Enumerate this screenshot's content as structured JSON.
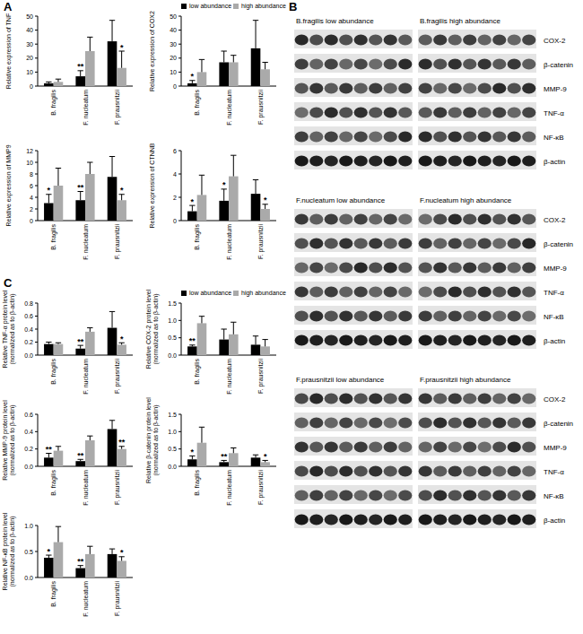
{
  "panel_labels": [
    "A",
    "B",
    "C"
  ],
  "chart_data": [
    {
      "type": "bar",
      "y_label": [
        "Relative expression of TNF"
      ],
      "categories": [
        "B. fragilis",
        "F. nucleatum",
        "F. prausnitzii"
      ],
      "series": [
        {
          "name": "low abundance",
          "color": "#000000",
          "values": [
            2,
            7,
            32
          ],
          "errors": [
            1,
            4,
            15
          ]
        },
        {
          "name": "high abundance",
          "color": "#aaaaaa",
          "values": [
            3,
            25,
            13
          ],
          "errors": [
            2,
            10,
            12
          ]
        }
      ],
      "ylim": [
        0,
        50
      ],
      "yticks": [
        0,
        10,
        20,
        30,
        40,
        50
      ],
      "annotations": [
        {
          "text": "**",
          "category": "F. nucleatum",
          "series": "low abundance"
        },
        {
          "text": "*",
          "category": "F. prausnitzii",
          "series": "high abundance"
        }
      ]
    },
    {
      "type": "bar",
      "y_label": [
        "Relative expression of COX2"
      ],
      "categories": [
        "B. fragilis",
        "F. nucleatum",
        "F. prausnitzii"
      ],
      "series": [
        {
          "name": "low abundance",
          "color": "#000000",
          "values": [
            2,
            17,
            27
          ],
          "errors": [
            2,
            8,
            20
          ]
        },
        {
          "name": "high abundance",
          "color": "#aaaaaa",
          "values": [
            10,
            17,
            12
          ],
          "errors": [
            9,
            5,
            5
          ]
        }
      ],
      "ylim": [
        0,
        50
      ],
      "yticks": [
        0,
        10,
        20,
        30,
        40,
        50
      ],
      "legend": "top",
      "annotations": [
        {
          "text": "*",
          "category": "B. fragilis",
          "series": "low abundance"
        }
      ]
    },
    {
      "type": "bar",
      "y_label": [
        "Relative expression of MMP9"
      ],
      "categories": [
        "B. fragilis",
        "F. nucleatum",
        "F. prausnitzii"
      ],
      "series": [
        {
          "name": "low abundance",
          "color": "#000000",
          "values": [
            3,
            3.5,
            7.5
          ],
          "errors": [
            1.5,
            1.5,
            3.5
          ]
        },
        {
          "name": "high abundance",
          "color": "#aaaaaa",
          "values": [
            6,
            8,
            3.5
          ],
          "errors": [
            3,
            2,
            1
          ]
        }
      ],
      "ylim": [
        0,
        12
      ],
      "yticks": [
        0,
        2,
        4,
        6,
        8,
        10,
        12
      ],
      "annotations": [
        {
          "text": "*",
          "category": "B. fragilis",
          "series": "low abundance"
        },
        {
          "text": "**",
          "category": "F. nucleatum",
          "series": "low abundance"
        },
        {
          "text": "*",
          "category": "F. prausnitzii",
          "series": "high abundance"
        }
      ]
    },
    {
      "type": "bar",
      "y_label": [
        "Relative expression of CTNNB"
      ],
      "categories": [
        "B. fragilis",
        "F. nucleatum",
        "F. prausnitzii"
      ],
      "series": [
        {
          "name": "low abundance",
          "color": "#000000",
          "values": [
            0.8,
            1.7,
            2.3
          ],
          "errors": [
            0.5,
            1,
            1.2
          ]
        },
        {
          "name": "high abundance",
          "color": "#aaaaaa",
          "values": [
            2.2,
            3.8,
            1
          ],
          "errors": [
            1.7,
            1.8,
            0.4
          ]
        }
      ],
      "ylim": [
        0,
        6
      ],
      "yticks": [
        0,
        2,
        4,
        6
      ],
      "annotations": [
        {
          "text": "*",
          "category": "B. fragilis",
          "series": "low abundance"
        },
        {
          "text": "*",
          "category": "F. nucleatum",
          "series": "low abundance"
        },
        {
          "text": "*",
          "category": "F. prausnitzii",
          "series": "high abundance"
        }
      ]
    },
    {
      "type": "bar",
      "y_label": [
        "Relative TNF-α protein level",
        "(normalized as to β-actin)"
      ],
      "categories": [
        "B. fragilis",
        "F. nucleatum",
        "F. prausnitzii"
      ],
      "series": [
        {
          "name": "low abundance",
          "color": "#000000",
          "values": [
            0.17,
            0.1,
            0.42
          ],
          "errors": [
            0.03,
            0.05,
            0.25
          ]
        },
        {
          "name": "high abundance",
          "color": "#aaaaaa",
          "values": [
            0.17,
            0.36,
            0.16
          ],
          "errors": [
            0.02,
            0.06,
            0.03
          ]
        }
      ],
      "ylim": [
        0,
        0.8
      ],
      "yticks": [
        {
          "value": 0,
          "label": "0.0"
        },
        0.2,
        0.4,
        0.6,
        0.8
      ],
      "annotations": [
        {
          "text": "**",
          "category": "F. nucleatum",
          "series": "low abundance"
        },
        {
          "text": "*",
          "category": "F. prausnitzii",
          "series": "high abundance"
        }
      ]
    },
    {
      "type": "bar",
      "y_label": [
        "Relative COX-2 protein level",
        "(normalized as to β-actin)"
      ],
      "categories": [
        "B. fragilis",
        "F. nucleatum",
        "F. prausnitzii"
      ],
      "series": [
        {
          "name": "low abundance",
          "color": "#000000",
          "values": [
            0.25,
            0.45,
            0.3
          ],
          "errors": [
            0.04,
            0.3,
            0.25
          ]
        },
        {
          "name": "high abundance",
          "color": "#aaaaaa",
          "values": [
            0.92,
            0.6,
            0.25
          ],
          "errors": [
            0.2,
            0.35,
            0.2
          ]
        }
      ],
      "ylim": [
        0,
        1.5
      ],
      "yticks": [
        {
          "value": 0,
          "label": "0.0"
        },
        0.5,
        {
          "value": 1,
          "label": "1.0"
        },
        1.5
      ],
      "legend": "top",
      "annotations": [
        {
          "text": "**",
          "category": "B. fragilis",
          "series": "low abundance"
        }
      ]
    },
    {
      "type": "bar",
      "y_label": [
        "Relative MMP-9 protein level",
        "(normalized as to β-actin)"
      ],
      "categories": [
        "B. fragilis",
        "F. nucleatum",
        "F. prausnitzii"
      ],
      "series": [
        {
          "name": "low abundance",
          "color": "#000000",
          "values": [
            0.1,
            0.06,
            0.43
          ],
          "errors": [
            0.05,
            0.02,
            0.1
          ]
        },
        {
          "name": "high abundance",
          "color": "#aaaaaa",
          "values": [
            0.18,
            0.3,
            0.2
          ],
          "errors": [
            0.05,
            0.05,
            0.03
          ]
        }
      ],
      "ylim": [
        0,
        0.6
      ],
      "yticks": [
        {
          "value": 0,
          "label": "0.0"
        },
        0.2,
        0.4,
        0.6
      ],
      "annotations": [
        {
          "text": "**",
          "category": "B. fragilis",
          "series": "low abundance"
        },
        {
          "text": "**",
          "category": "F. nucleatum",
          "series": "low abundance"
        },
        {
          "text": "**",
          "category": "F. prausnitzii",
          "series": "high abundance"
        }
      ]
    },
    {
      "type": "bar",
      "y_label": [
        "Relative β-catenin protein level",
        "(normalized as to β-actin)"
      ],
      "categories": [
        "B. fragilis",
        "F. nucleatum",
        "F. prausnitzii"
      ],
      "series": [
        {
          "name": "low abundance",
          "color": "#000000",
          "values": [
            0.2,
            0.12,
            0.25
          ],
          "errors": [
            0.1,
            0.05,
            0.08
          ]
        },
        {
          "name": "high abundance",
          "color": "#aaaaaa",
          "values": [
            0.68,
            0.38,
            0.12
          ],
          "errors": [
            0.45,
            0.15,
            0.05
          ]
        }
      ],
      "ylim": [
        0,
        1.5
      ],
      "yticks": [
        {
          "value": 0,
          "label": "0.0"
        },
        0.5,
        {
          "value": 1,
          "label": "1.0"
        },
        1.5
      ],
      "annotations": [
        {
          "text": "*",
          "category": "B. fragilis",
          "series": "low abundance"
        },
        {
          "text": "**",
          "category": "F. nucleatum",
          "series": "low abundance"
        },
        {
          "text": "*",
          "category": "F. prausnitzii",
          "series": "high abundance"
        }
      ]
    },
    {
      "type": "bar",
      "y_label": [
        "Relative NF-κB protein level",
        "(normalized as to β-actin)"
      ],
      "categories": [
        "B. fragilis",
        "F. nucleatum",
        "F. prausnitzii"
      ],
      "series": [
        {
          "name": "low abundance",
          "color": "#000000",
          "values": [
            0.38,
            0.18,
            0.45
          ],
          "errors": [
            0.05,
            0.05,
            0.1
          ]
        },
        {
          "name": "high abundance",
          "color": "#aaaaaa",
          "values": [
            0.68,
            0.45,
            0.32
          ],
          "errors": [
            0.3,
            0.15,
            0.08
          ]
        }
      ],
      "ylim": [
        0,
        1
      ],
      "yticks": [
        {
          "value": 0,
          "label": "0.0"
        },
        0.5,
        {
          "value": 1,
          "label": "1.0"
        }
      ],
      "annotations": [
        {
          "text": "*",
          "category": "B. fragilis",
          "series": "low abundance"
        },
        {
          "text": "**",
          "category": "F. nucleatum",
          "series": "low abundance"
        },
        {
          "text": "*",
          "category": "F. prausnitzii",
          "series": "high abundance"
        }
      ]
    }
  ],
  "blots": [
    {
      "titles": [
        "B.fragilis low abundance",
        "B.fragilis high abundance"
      ],
      "rows": [
        "COX-2",
        "β-catenin",
        "MMP-9",
        "TNF-α",
        "NF-κB",
        "β-actin"
      ]
    },
    {
      "titles": [
        "F.nucleatum low abundance",
        "F.nucleatum high abundance"
      ],
      "rows": [
        "COX-2",
        "β-catenin",
        "MMP-9",
        "TNF-α",
        "NF-κB",
        "β-actin"
      ]
    },
    {
      "titles": [
        "F.prausnitzii low abundance",
        "F.prausnitzii high abundance"
      ],
      "rows": [
        "COX-2",
        "β-catenin",
        "MMP-9",
        "TNF-α",
        "NF-κB",
        "β-actin"
      ]
    }
  ]
}
